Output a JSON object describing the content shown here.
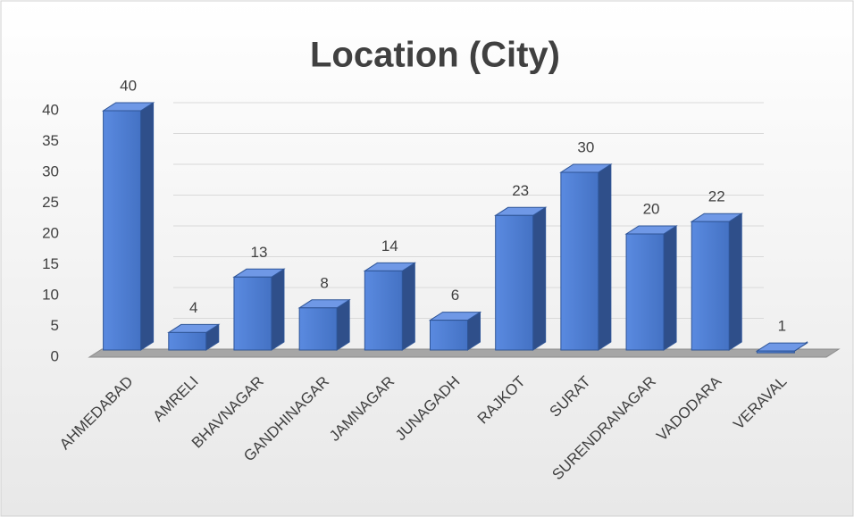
{
  "chart_data": {
    "type": "bar3d",
    "title": "Location (City)",
    "categories": [
      "AHMEDABAD",
      "AMRELI",
      "BHAVNAGAR",
      "GANDHINAGAR",
      "JAMNAGAR",
      "JUNAGADH",
      "RAJKOT",
      "SURAT",
      "SURENDRANAGAR",
      "VADODARA",
      "VERAVAL"
    ],
    "values": [
      40,
      4,
      13,
      8,
      14,
      6,
      23,
      30,
      20,
      22,
      1
    ],
    "color": "#4472c4",
    "ylim": [
      0,
      40
    ],
    "yticks": [
      0,
      5,
      10,
      15,
      20,
      25,
      30,
      35,
      40
    ],
    "grid": true
  }
}
